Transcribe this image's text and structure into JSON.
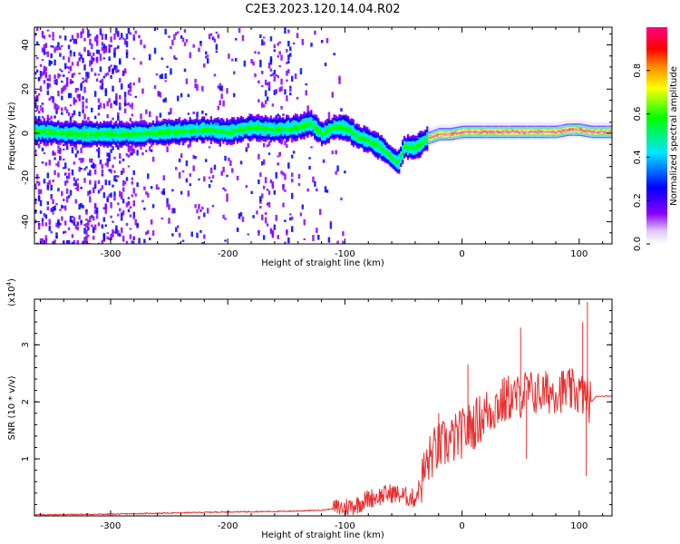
{
  "title": "C2E3.2023.120.14.04.R02",
  "chart_data": [
    {
      "type": "heatmap",
      "title": "C2E3.2023.120.14.04.R02",
      "xlabel": "Height of straight line (km)",
      "ylabel": "Frequency (Hz)",
      "xlim": [
        -365,
        128
      ],
      "ylim": [
        -50,
        48
      ],
      "xticks": [
        -300,
        -200,
        -100,
        0,
        100
      ],
      "yticks": [
        -40,
        -20,
        0,
        20,
        40
      ],
      "colorbar": {
        "label": "Normalized spectral amplitude",
        "range": [
          0,
          1
        ],
        "ticks": [
          0.0,
          0.2,
          0.4,
          0.6,
          0.8
        ],
        "colors": [
          "#ffffff",
          "#e0c8f8",
          "#8800ff",
          "#0000ff",
          "#00e5ff",
          "#00ff00",
          "#ffff00",
          "#ff8800",
          "#ff0000",
          "#ff0080"
        ]
      },
      "ridge": {
        "x": [
          -355,
          -330,
          -300,
          -280,
          -250,
          -220,
          -200,
          -180,
          -160,
          -140,
          -130,
          -120,
          -110,
          -100,
          -90,
          -80,
          -70,
          -60,
          -55,
          -50,
          -40,
          -30,
          -20,
          -10,
          0,
          20,
          40,
          60,
          80,
          90,
          100,
          110,
          120
        ],
        "y": [
          1,
          0,
          0,
          0,
          1,
          2,
          1,
          3,
          2,
          3,
          5,
          0,
          3,
          3,
          -1,
          -3,
          -6,
          -11,
          -13,
          -6,
          -6,
          -2,
          0,
          0,
          1,
          1,
          1,
          1,
          1,
          2,
          2,
          1,
          1
        ]
      },
      "grid": false,
      "legend": "right colorbar"
    },
    {
      "type": "line",
      "xlabel": "Height of straight line (km)",
      "ylabel": "SNR (10 * v/v)",
      "yscale_label": "(x10",
      "yscale_exp": "4",
      "xlim": [
        -365,
        128
      ],
      "ylim": [
        0,
        3.8
      ],
      "xticks": [
        -300,
        -200,
        -100,
        0,
        100
      ],
      "yticks": [
        1,
        2,
        3
      ],
      "series": [
        {
          "color": "#e83030",
          "x": [
            -365,
            -300,
            -250,
            -200,
            -150,
            -120,
            -100,
            -90,
            -80,
            -70,
            -60,
            -50,
            -40,
            -35,
            -30,
            -25,
            -20,
            -10,
            0,
            10,
            20,
            30,
            40,
            50,
            55,
            60,
            70,
            80,
            90,
            100,
            105,
            110,
            115,
            120,
            128
          ],
          "y": [
            0.02,
            0.03,
            0.05,
            0.07,
            0.08,
            0.1,
            0.15,
            0.2,
            0.3,
            0.35,
            0.4,
            0.35,
            0.3,
            0.6,
            0.9,
            1.1,
            1.2,
            1.3,
            1.45,
            1.6,
            1.8,
            1.95,
            2.05,
            2.1,
            2.2,
            2.15,
            2.15,
            2.2,
            2.2,
            2.15,
            2.1,
            2.0,
            2.1,
            2.1,
            2.1
          ],
          "spikes": [
            {
              "x": -20,
              "y": 1.8
            },
            {
              "x": 5,
              "y": 2.65
            },
            {
              "x": 50,
              "y": 3.3
            },
            {
              "x": 55,
              "y": 1.0
            },
            {
              "x": 103,
              "y": 3.4
            },
            {
              "x": 107,
              "y": 3.75
            },
            {
              "x": 106,
              "y": 0.7
            }
          ]
        }
      ],
      "grid": false
    }
  ]
}
